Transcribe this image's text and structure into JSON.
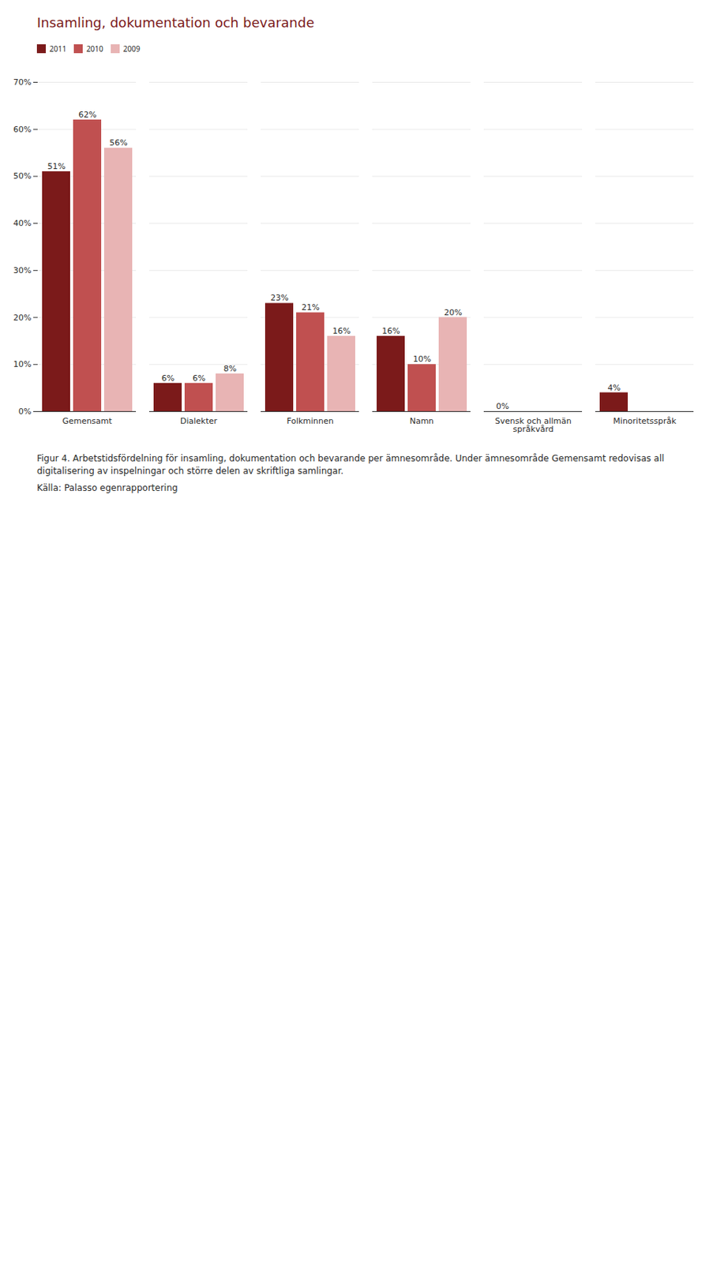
{
  "chart_data": {
    "type": "bar",
    "title": "Insamling, dokumentation och bevarande",
    "categories": [
      "Gemensamt",
      "Dialekter",
      "Folkminnen",
      "Namn",
      "Svensk och allmän\nspråkvård",
      "Minoritetsspråk"
    ],
    "series": [
      {
        "name": "2011",
        "color": "#7b1a1a",
        "values": [
          51,
          6,
          23,
          16,
          0,
          4
        ],
        "value_labels": [
          "51%",
          "6%",
          "23%",
          "16%",
          "0%",
          "4%"
        ]
      },
      {
        "name": "2010",
        "color": "#c05050",
        "values": [
          62,
          6,
          21,
          10,
          null,
          null
        ],
        "value_labels": [
          "62%",
          "6%",
          "21%",
          "10%",
          null,
          null
        ]
      },
      {
        "name": "2009",
        "color": "#e8b4b4",
        "values": [
          56,
          8,
          16,
          20,
          null,
          null
        ],
        "value_labels": [
          "56%",
          "8%",
          "16%",
          "20%",
          null,
          null
        ]
      }
    ],
    "ylim": [
      0,
      70
    ],
    "yticks": [
      {
        "value": 0,
        "label": "0%"
      },
      {
        "value": 10,
        "label": "10%"
      },
      {
        "value": 20,
        "label": "20%"
      },
      {
        "value": 30,
        "label": "30%"
      },
      {
        "value": 40,
        "label": "40%"
      },
      {
        "value": 50,
        "label": "50%"
      },
      {
        "value": 60,
        "label": "60%"
      },
      {
        "value": 70,
        "label": "70%"
      }
    ],
    "grid": true,
    "legend": "top",
    "data_labels": true,
    "caption": [
      "Figur 4. Arbetstidsfördelning för insamling, dokumentation och bevarande per ämnesområde. Under ämnesområde Gemensamt redovisas all digitalisering av inspelningar och större delen av skriftliga samlingar.",
      "Källa: Palasso egenrapportering"
    ]
  }
}
